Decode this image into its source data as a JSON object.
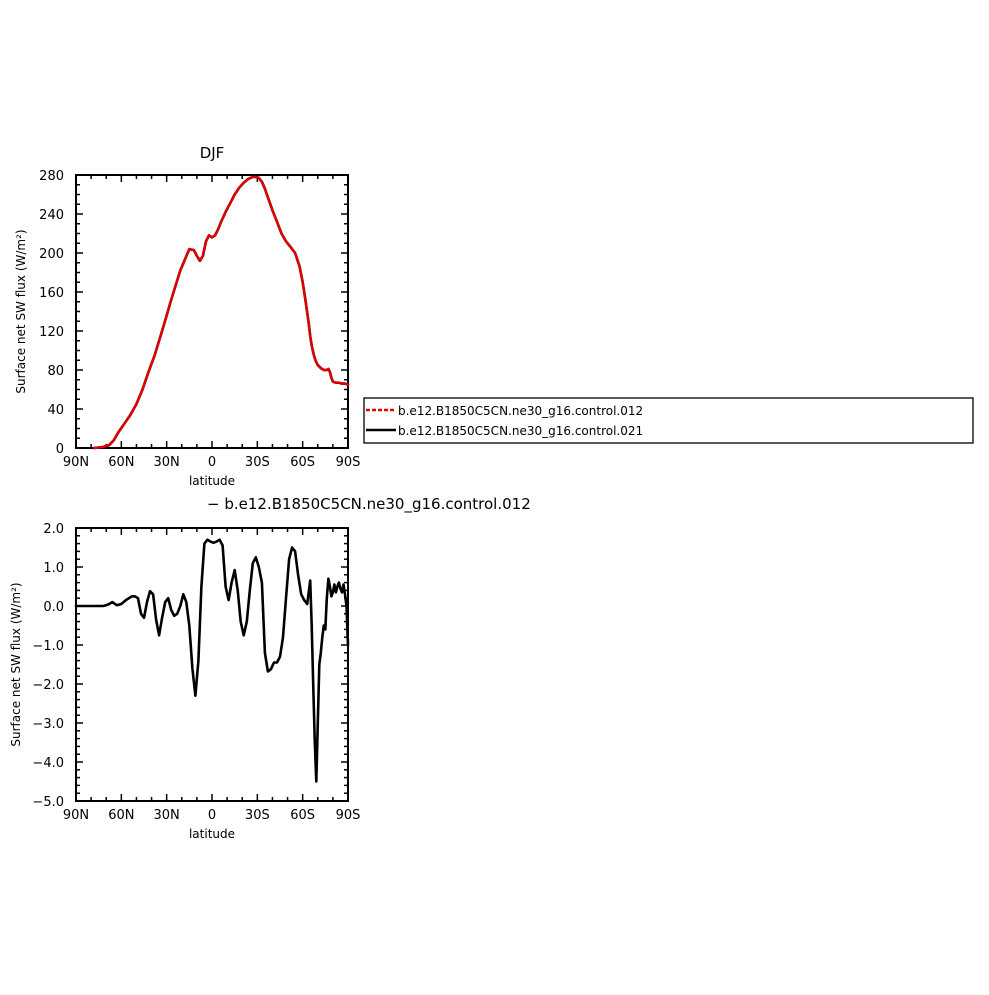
{
  "chart_data": [
    {
      "type": "line",
      "title": "DJF",
      "xlabel": "latitude",
      "ylabel": "Surface net SW flux (W/m²)",
      "xlim": [
        90,
        -90
      ],
      "ylim": [
        0,
        280
      ],
      "x_ticks": [
        90,
        60,
        30,
        0,
        -30,
        -60,
        -90
      ],
      "x_tick_labels": [
        "90N",
        "60N",
        "30N",
        "0",
        "30S",
        "60S",
        "90S"
      ],
      "y_ticks": [
        0,
        40,
        80,
        120,
        160,
        200,
        240,
        280
      ],
      "y_tick_labels": [
        "0",
        "40",
        "80",
        "120",
        "160",
        "200",
        "240",
        "280"
      ],
      "legend_position": "right",
      "series": [
        {
          "name": "b.e12.B1850C5CN.ne30_g16.control.012",
          "color": "#e00000",
          "dash": "dashed",
          "x": [
            78,
            72,
            68,
            65,
            62,
            58,
            54,
            50,
            46,
            42,
            38,
            34,
            30,
            27,
            24,
            21,
            18,
            15,
            12,
            10,
            8,
            6,
            4,
            2,
            0,
            -2,
            -4,
            -6,
            -9,
            -12,
            -15,
            -18,
            -21,
            -24,
            -27,
            -29,
            -31,
            -33,
            -35,
            -37,
            -40,
            -43,
            -46,
            -49,
            -52,
            -55,
            -58,
            -60,
            -62,
            -64,
            -65,
            -66,
            -67,
            -68,
            -69,
            -70,
            -72,
            -74,
            -76,
            -77,
            -78,
            -79,
            -80,
            -82,
            -84,
            -86,
            -88,
            -90
          ],
          "y": [
            0,
            1,
            3,
            8,
            16,
            25,
            34,
            45,
            60,
            78,
            95,
            115,
            136,
            152,
            167,
            182,
            193,
            204,
            203,
            197,
            192,
            197,
            212,
            218,
            216,
            218,
            224,
            232,
            242,
            251,
            260,
            267,
            272,
            276,
            278,
            278,
            277,
            273,
            266,
            257,
            244,
            232,
            220,
            212,
            206,
            200,
            186,
            170,
            150,
            128,
            115,
            105,
            98,
            92,
            88,
            85,
            82,
            80,
            80,
            81,
            78,
            72,
            68,
            67,
            67,
            66,
            66,
            65
          ]
        },
        {
          "name": "b.e12.B1850C5CN.ne30_g16.control.021",
          "color": "#000000",
          "dash": "solid",
          "x": [
            78,
            72,
            68,
            65,
            62,
            58,
            54,
            50,
            46,
            42,
            38,
            34,
            30,
            27,
            24,
            21,
            18,
            15,
            12,
            10,
            8,
            6,
            4,
            2,
            0,
            -2,
            -4,
            -6,
            -9,
            -12,
            -15,
            -18,
            -21,
            -24,
            -27,
            -29,
            -31,
            -33,
            -35,
            -37,
            -40,
            -43,
            -46,
            -49,
            -52,
            -55,
            -58,
            -60,
            -62,
            -64,
            -65,
            -66,
            -67,
            -68,
            -69,
            -70,
            -72,
            -74,
            -76,
            -77,
            -78,
            -79,
            -80,
            -82,
            -84,
            -86,
            -88,
            -90
          ],
          "y": [
            0,
            1,
            3,
            8,
            16,
            25,
            34,
            45,
            60,
            78,
            95,
            115,
            136,
            152,
            167,
            182,
            193,
            204,
            203,
            197,
            192,
            197,
            212,
            218,
            216,
            218,
            224,
            232,
            242,
            251,
            260,
            267,
            272,
            276,
            278,
            278,
            277,
            273,
            266,
            257,
            244,
            232,
            220,
            212,
            206,
            200,
            186,
            170,
            150,
            128,
            115,
            105,
            98,
            92,
            88,
            85,
            82,
            80,
            80,
            81,
            78,
            72,
            68,
            67,
            67,
            66,
            66,
            65
          ]
        }
      ]
    },
    {
      "type": "line",
      "title": "− b.e12.B1850C5CN.ne30_g16.control.012",
      "xlabel": "latitude",
      "ylabel": "Surface net SW flux (W/m²)",
      "xlim": [
        90,
        -90
      ],
      "ylim": [
        -5.0,
        2.0
      ],
      "x_ticks": [
        90,
        60,
        30,
        0,
        -30,
        -60,
        -90
      ],
      "x_tick_labels": [
        "90N",
        "60N",
        "30N",
        "0",
        "30S",
        "60S",
        "90S"
      ],
      "y_ticks": [
        2.0,
        1.0,
        0.0,
        -1.0,
        -2.0,
        -3.0,
        -4.0,
        -5.0
      ],
      "y_tick_labels": [
        "2.0",
        "1.0",
        "0.0",
        "−1.0",
        "−2.0",
        "−3.0",
        "−4.0",
        "−5.0"
      ],
      "series": [
        {
          "color": "#000000",
          "dash": "solid",
          "x": [
            90,
            85,
            80,
            75,
            72,
            70,
            68,
            66,
            63,
            60,
            57,
            55,
            53,
            51,
            49,
            47,
            45,
            43,
            41,
            39,
            37,
            35,
            33,
            31,
            29,
            27,
            25,
            23,
            21,
            19,
            17,
            15,
            13,
            11,
            9,
            7,
            5,
            3,
            1,
            -1,
            -3,
            -5,
            -7,
            -9,
            -11,
            -13,
            -15,
            -17,
            -19,
            -21,
            -23,
            -25,
            -27,
            -29,
            -31,
            -33,
            -35,
            -37,
            -39,
            -41,
            -43,
            -45,
            -47,
            -49,
            -51,
            -53,
            -55,
            -57,
            -59,
            -61,
            -63,
            -65,
            -66,
            -67,
            -68,
            -69,
            -70,
            -71,
            -72,
            -73,
            -74,
            -75,
            -76,
            -77,
            -78,
            -79,
            -80,
            -81,
            -82,
            -83,
            -84,
            -85,
            -86,
            -87,
            -88,
            -89,
            -90
          ],
          "y": [
            0.0,
            0.0,
            0.0,
            0.0,
            0.0,
            0.02,
            0.05,
            0.1,
            0.02,
            0.05,
            0.15,
            0.2,
            0.25,
            0.25,
            0.2,
            -0.2,
            -0.3,
            0.1,
            0.38,
            0.3,
            -0.35,
            -0.75,
            -0.3,
            0.1,
            0.2,
            -0.1,
            -0.25,
            -0.2,
            0.0,
            0.3,
            0.1,
            -0.5,
            -1.6,
            -2.3,
            -1.4,
            0.5,
            1.6,
            1.7,
            1.65,
            1.62,
            1.65,
            1.7,
            1.55,
            0.5,
            0.15,
            0.6,
            0.92,
            0.4,
            -0.4,
            -0.75,
            -0.4,
            0.4,
            1.1,
            1.25,
            1.0,
            0.6,
            -1.2,
            -1.68,
            -1.62,
            -1.45,
            -1.45,
            -1.3,
            -0.8,
            0.2,
            1.2,
            1.5,
            1.4,
            0.8,
            0.3,
            0.15,
            0.05,
            0.65,
            -0.5,
            -2.0,
            -3.5,
            -4.5,
            -3.0,
            -1.5,
            -1.2,
            -0.8,
            -0.5,
            -0.6,
            0.2,
            0.7,
            0.5,
            0.25,
            0.35,
            0.55,
            0.35,
            0.5,
            0.6,
            0.45,
            0.35,
            0.55,
            0.3,
            0.0,
            -1.0
          ]
        }
      ]
    }
  ]
}
